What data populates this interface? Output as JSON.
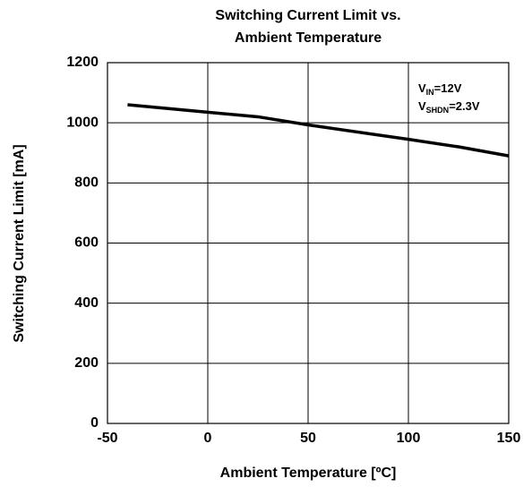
{
  "chart_data": {
    "type": "line",
    "title": [
      "Switching Current Limit vs.",
      "Ambient Temperature"
    ],
    "x_label": "Ambient Temperature [ºC]",
    "y_label": "Switching Current Limit [mA]",
    "annotations": [
      {
        "base": "V",
        "sub": "IN",
        "rest": "=12V"
      },
      {
        "base": "V",
        "sub": "SHDN",
        "rest": "=2.3V"
      }
    ],
    "x": [
      -40,
      0,
      25,
      50,
      100,
      125,
      150
    ],
    "series": [
      {
        "name": "Switching Current Limit",
        "color": "#000000",
        "values": [
          1060,
          1035,
          1020,
          993,
          945,
          920,
          890
        ]
      }
    ],
    "xlim": [
      -50,
      150
    ],
    "xticks": [
      -50,
      0,
      50,
      100,
      150
    ],
    "ylim": [
      0,
      1200
    ],
    "yticks": [
      0,
      200,
      400,
      600,
      800,
      1000,
      1200
    ],
    "grid": true
  }
}
